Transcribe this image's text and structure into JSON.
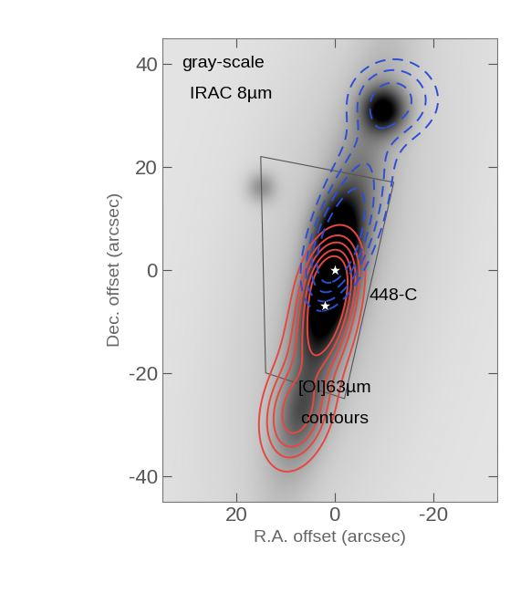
{
  "chart_data": {
    "type": "contour",
    "x_label": "R.A. offset (arcsec)",
    "y_label": "Dec. offset (arcsec)",
    "xlim": [
      35,
      -33
    ],
    "ylim": [
      -45,
      45
    ],
    "xticks": [
      20,
      0,
      -20
    ],
    "yticks": [
      -40,
      -20,
      0,
      20,
      40
    ],
    "annotations": [
      "gray-scale",
      "IRAC 8µm",
      "448-C",
      "[OI]63µm",
      "contours"
    ],
    "image": {
      "background": 0.12,
      "sources": [
        [
          1,
          -3,
          1.0,
          8,
          3,
          -14
        ],
        [
          0,
          0,
          0.45,
          25,
          4,
          -14
        ],
        [
          -10,
          31,
          0.85,
          3,
          3,
          0
        ],
        [
          0,
          8,
          0.55,
          5,
          3,
          -14
        ],
        [
          7,
          -28,
          0.3,
          6,
          3,
          -14
        ],
        [
          15,
          16,
          0.3,
          2,
          2,
          0
        ],
        [
          0,
          0,
          0.15,
          40,
          14,
          -14
        ]
      ]
    },
    "contours": [
      {
        "color": "#e8473f",
        "line_style": "solid",
        "levels": [
          0.2,
          0.35,
          0.5,
          0.7,
          0.9
        ],
        "sources": [
          [
            1,
            -2,
            1.0,
            5,
            3,
            -15
          ],
          [
            2,
            -10,
            0.8,
            6,
            3,
            -15
          ],
          [
            8,
            -28,
            0.6,
            6,
            4,
            -15
          ],
          [
            4,
            -15,
            0.4,
            15,
            5,
            -15
          ]
        ]
      },
      {
        "color": "#2c4fd6",
        "line_style": "dashed",
        "levels": [
          0.2,
          0.35,
          0.55,
          0.8
        ],
        "sources": [
          [
            0,
            3,
            1.0,
            6,
            3,
            -20
          ],
          [
            -3,
            10,
            0.6,
            8,
            4,
            -20
          ],
          [
            -12,
            33,
            0.6,
            5,
            6,
            0
          ],
          [
            -6,
            20,
            0.3,
            10,
            4,
            -20
          ]
        ]
      }
    ],
    "stars": {
      "x": [
        0,
        2
      ],
      "y": [
        0,
        -7
      ],
      "marker": "star",
      "color": "white"
    },
    "footprint": {
      "x": [
        15,
        -12,
        -2,
        14
      ],
      "y": [
        22,
        17,
        -25,
        -20
      ],
      "color": "#555555"
    }
  }
}
